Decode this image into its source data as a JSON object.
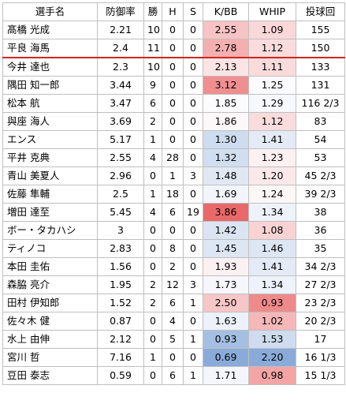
{
  "headers": [
    "選手名",
    "防御率",
    "勝",
    "H",
    "S",
    "K/BB",
    "WHIP",
    "投球回"
  ],
  "rows": [
    {
      "name": "髙橋 光成",
      "era": "2.21",
      "w": "10",
      "h": "0",
      "s": "0",
      "kbb": "2.55",
      "whip": "1.09",
      "ip": "155",
      "kbb_color": "#f7c3c4",
      "whip_color": "#fad7d8"
    },
    {
      "name": "平良 海馬",
      "era": "2.4",
      "w": "11",
      "h": "0",
      "s": "0",
      "kbb": "2.78",
      "whip": "1.12",
      "ip": "150",
      "kbb_color": "#f4b0b1",
      "whip_color": "#fadcdd"
    },
    {
      "name": "今井 達也",
      "era": "2.3",
      "w": "10",
      "h": "0",
      "s": "0",
      "kbb": "2.13",
      "whip": "1.11",
      "ip": "133",
      "kbb_color": "#fbe4e5",
      "whip_color": "#fadbdc"
    },
    {
      "name": "隅田 知一郎",
      "era": "3.44",
      "w": "9",
      "h": "0",
      "s": "0",
      "kbb": "3.12",
      "whip": "1.25",
      "ip": "131",
      "kbb_color": "#ef8f90",
      "whip_color": "#fbfbff"
    },
    {
      "name": "松本 航",
      "era": "3.47",
      "w": "6",
      "h": "0",
      "s": "0",
      "kbb": "1.85",
      "whip": "1.29",
      "ip": "116 2/3",
      "kbb_color": "#fcfcff",
      "whip_color": "#f5f8fd"
    },
    {
      "name": "與座 海人",
      "era": "3.69",
      "w": "2",
      "h": "0",
      "s": "0",
      "kbb": "1.86",
      "whip": "1.12",
      "ip": "83",
      "kbb_color": "#fcf8f9",
      "whip_color": "#fadcdd"
    },
    {
      "name": "エンス",
      "era": "5.17",
      "w": "1",
      "h": "0",
      "s": "0",
      "kbb": "1.30",
      "whip": "1.41",
      "ip": "54",
      "kbb_color": "#cfdcef",
      "whip_color": "#e4ebf6"
    },
    {
      "name": "平井 克典",
      "era": "2.55",
      "w": "4",
      "h": "28",
      "s": "0",
      "kbb": "1.32",
      "whip": "1.23",
      "ip": "53",
      "kbb_color": "#d1deef",
      "whip_color": "#fcf1f1"
    },
    {
      "name": "青山 美夏人",
      "era": "2.96",
      "w": "0",
      "h": "1",
      "s": "3",
      "kbb": "1.48",
      "whip": "1.20",
      "ip": "45 2/3",
      "kbb_color": "#e0e8f4",
      "whip_color": "#fbe8e9"
    },
    {
      "name": "佐藤 隼輔",
      "era": "2.5",
      "w": "1",
      "h": "18",
      "s": "0",
      "kbb": "1.69",
      "whip": "1.24",
      "ip": "39 2/3",
      "kbb_color": "#f2f5fb",
      "whip_color": "#fcf7f7"
    },
    {
      "name": "増田 達至",
      "era": "5.45",
      "w": "4",
      "h": "6",
      "s": "19",
      "kbb": "3.86",
      "whip": "1.34",
      "ip": "38",
      "kbb_color": "#e9686a",
      "whip_color": "#eef2fa"
    },
    {
      "name": "ボー・タカハシ",
      "era": "3",
      "w": "0",
      "h": "0",
      "s": "0",
      "kbb": "1.42",
      "whip": "1.08",
      "ip": "36",
      "kbb_color": "#dbe4f2",
      "whip_color": "#f9d3d4"
    },
    {
      "name": "ティノコ",
      "era": "2.83",
      "w": "0",
      "h": "8",
      "s": "0",
      "kbb": "1.45",
      "whip": "1.46",
      "ip": "35",
      "kbb_color": "#dde6f3",
      "whip_color": "#dde6f3"
    },
    {
      "name": "本田 圭佑",
      "era": "1.56",
      "w": "0",
      "h": "2",
      "s": "0",
      "kbb": "1.93",
      "whip": "1.41",
      "ip": "34 2/3",
      "kbb_color": "#fcf1f2",
      "whip_color": "#e4ebf6"
    },
    {
      "name": "森脇 亮介",
      "era": "1.95",
      "w": "2",
      "h": "12",
      "s": "3",
      "kbb": "1.73",
      "whip": "1.34",
      "ip": "27 2/3",
      "kbb_color": "#f5f7fc",
      "whip_color": "#eef2fa"
    },
    {
      "name": "田村 伊知郎",
      "era": "1.52",
      "w": "2",
      "h": "6",
      "s": "1",
      "kbb": "2.50",
      "whip": "0.93",
      "ip": "23 2/3",
      "kbb_color": "#f7c6c7",
      "whip_color": "#ef8a8b"
    },
    {
      "name": "佐々木 健",
      "era": "0.87",
      "w": "0",
      "h": "4",
      "s": "0",
      "kbb": "1.63",
      "whip": "1.02",
      "ip": "20 2/3",
      "kbb_color": "#edf1f9",
      "whip_color": "#f5b7b8"
    },
    {
      "name": "水上 由伸",
      "era": "2.12",
      "w": "0",
      "h": "5",
      "s": "1",
      "kbb": "0.93",
      "whip": "1.53",
      "ip": "17",
      "kbb_color": "#a4bfe2",
      "whip_color": "#cfdcef"
    },
    {
      "name": "宮川 哲",
      "era": "7.16",
      "w": "1",
      "h": "0",
      "s": "0",
      "kbb": "0.69",
      "whip": "2.20",
      "ip": "16 1/3",
      "kbb_color": "#8aabd9",
      "whip_color": "#8aabd9"
    },
    {
      "name": "豆田 泰志",
      "era": "0.59",
      "w": "0",
      "h": "6",
      "s": "1",
      "kbb": "1.71",
      "whip": "0.98",
      "ip": "15 1/3",
      "kbb_color": "#f4f6fc",
      "whip_color": "#f3a5a6"
    }
  ]
}
